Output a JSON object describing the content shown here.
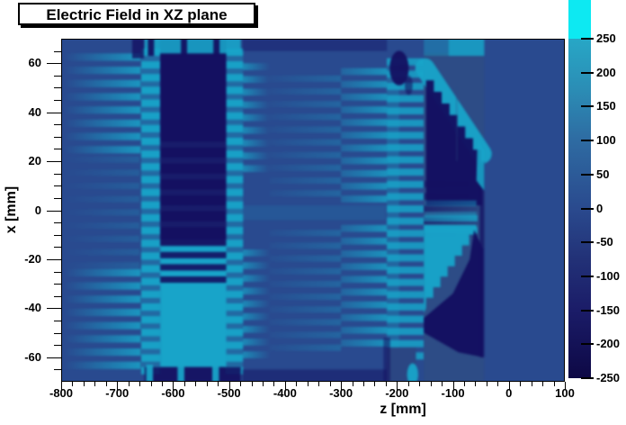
{
  "title": "Electric Field in XZ plane",
  "axes": {
    "x": {
      "title": "z [mm]",
      "min": -800,
      "max": 100,
      "ticks": [
        -800,
        -700,
        -600,
        -500,
        -400,
        -300,
        -200,
        -100,
        0,
        100
      ],
      "minor_step": 20
    },
    "y": {
      "title": "x [mm]",
      "min": -70,
      "max": 70,
      "ticks": [
        -60,
        -40,
        -20,
        0,
        20,
        40,
        60
      ],
      "minor_step": 5
    }
  },
  "colorbar": {
    "min": -250,
    "max": 250,
    "ticks": [
      250,
      200,
      150,
      100,
      50,
      0,
      -50,
      -100,
      -150,
      -200,
      -250
    ],
    "gradient_stops": [
      [
        "0%",
        "#0d0845"
      ],
      [
        "20%",
        "#1b1c68"
      ],
      [
        "35%",
        "#223177"
      ],
      [
        "50%",
        "#2a4a8e"
      ],
      [
        "70%",
        "#2e6ba2"
      ],
      [
        "85%",
        "#2b8db5"
      ],
      [
        "100%",
        "#27a7c6"
      ]
    ],
    "overflow_color": "#0de9f2"
  },
  "chart_data": {
    "type": "heatmap",
    "title": "Electric Field in XZ plane",
    "xlabel": "z [mm]",
    "ylabel": "x [mm]",
    "xlim": [
      -800,
      100
    ],
    "ylim": [
      -70,
      70
    ],
    "zlim": [
      -250,
      250
    ],
    "grid": false,
    "legend_position": "right-colorbar",
    "palette": {
      "bg": "#294a8f",
      "dark": "#141061",
      "cyan": "#18a4c9",
      "panel": "#2d4c86",
      "panel2": "#2b4683",
      "bright": "#0de9f2"
    },
    "palette_value_hints": {
      "bg": 0,
      "panel": -20,
      "panel2": -30,
      "dark": -220,
      "cyan": 230,
      "bright": 260
    },
    "features": [
      "uniform field region ~0 for z > -40 mm",
      "field-cage ring comb pattern (stripes every ~5 mm in x) for -800 < z < -650 mm, strongest near z = -650 mm",
      "strong positive (cyan ~ +230) striped columns at z = -650 and z = -490 mm spanning all x",
      "central electrode block -620 < z < -505 mm: strongly negative (~ -220) for x > -10 mm, strongly positive (~ +230) for -25 > x > -63 mm",
      "striped entrance column at z = -215 to -195 mm",
      "right structure -215 < z < -45 mm: jagged diagonal negative band from (z=-150, x=+53) to (z=-50, x=+20) with dark lobe below, mirrored positive cyan lobe for x < 0 with negative diagonal band toward bottom-right",
      "dark negative blob near (z=-196, x=+58); bright positive blob near (z=-172, x=-67)"
    ],
    "regions": [
      {
        "t": "rect",
        "c": "bg",
        "z": [
          -800,
          100
        ],
        "x": [
          70,
          -70
        ],
        "a": 1
      },
      {
        "t": "stripes",
        "c": "cyan",
        "z": [
          -795,
          -658
        ],
        "x": [
          64,
          24
        ],
        "p": 5.4,
        "th": 3.0,
        "a": [
          0,
          0.85
        ]
      },
      {
        "t": "stripes",
        "c": "cyan",
        "z": [
          -795,
          -658
        ],
        "x": [
          -24,
          -64
        ],
        "p": 5.4,
        "th": 3.0,
        "a": [
          0,
          0.85
        ]
      },
      {
        "t": "stripes",
        "c": "cyan",
        "z": [
          -795,
          -660
        ],
        "x": [
          22,
          -22
        ],
        "p": 5.4,
        "th": 2.6,
        "a": [
          0,
          0.22
        ]
      },
      {
        "t": "rect",
        "c": "cyan",
        "z": [
          -657,
          -623
        ],
        "x": [
          66,
          -66
        ],
        "a": 0.35
      },
      {
        "t": "stripes",
        "c": "cyan",
        "z": [
          -657,
          -623
        ],
        "x": [
          66,
          -66
        ],
        "p": 5.2,
        "th": 3.0,
        "a": [
          0.95,
          0.95
        ]
      },
      {
        "t": "rect",
        "c": "cyan",
        "z": [
          -507,
          -475
        ],
        "x": [
          66,
          -66
        ],
        "a": 0.35
      },
      {
        "t": "stripes",
        "c": "cyan",
        "z": [
          -507,
          -475
        ],
        "x": [
          66,
          -66
        ],
        "p": 5.2,
        "th": 3.0,
        "a": [
          0.95,
          0.95
        ]
      },
      {
        "t": "stripes",
        "c": "cyan",
        "z": [
          -475,
          -426
        ],
        "x": [
          60,
          16
        ],
        "p": 5.2,
        "th": 2.8,
        "a": [
          0.7,
          0
        ]
      },
      {
        "t": "stripes",
        "c": "cyan",
        "z": [
          -475,
          -426
        ],
        "x": [
          -16,
          -60
        ],
        "p": 5.2,
        "th": 2.8,
        "a": [
          0.7,
          0
        ]
      },
      {
        "t": "rect",
        "c": "dark",
        "z": [
          -623,
          -505
        ],
        "x": [
          70,
          -12
        ],
        "a": 1
      },
      {
        "t": "rect",
        "c": "cyan",
        "z": [
          -623,
          -505
        ],
        "x": [
          -14,
          -64
        ],
        "a": 1
      },
      {
        "t": "stripes",
        "c": "dark",
        "z": [
          -623,
          -505
        ],
        "x": [
          -12,
          -30
        ],
        "p": 5.0,
        "th": 2.6,
        "a": [
          0.9,
          0.9
        ]
      },
      {
        "t": "stripes",
        "c": "bg",
        "z": [
          -623,
          -505
        ],
        "x": [
          28,
          -8
        ],
        "p": 6.5,
        "th": 2.4,
        "a": [
          0.22,
          0.22
        ]
      },
      {
        "t": "rect",
        "c": "cyan",
        "z": [
          -651,
          -479
        ],
        "x": [
          70,
          64
        ],
        "a": 0.9
      },
      {
        "t": "rect",
        "c": "dark",
        "z": [
          -645,
          -634
        ],
        "x": [
          70,
          63
        ],
        "a": 0.95
      },
      {
        "t": "rect",
        "c": "dark",
        "z": [
          -586,
          -575
        ],
        "x": [
          70,
          63
        ],
        "a": 0.95
      },
      {
        "t": "rect",
        "c": "dark",
        "z": [
          -528,
          -517
        ],
        "x": [
          70,
          63
        ],
        "a": 0.95
      },
      {
        "t": "rect",
        "c": "dark",
        "z": [
          -673,
          -652
        ],
        "x": [
          70,
          62
        ],
        "a": 0.8
      },
      {
        "t": "rect",
        "c": "dark",
        "z": [
          -651,
          -479
        ],
        "x": [
          -64,
          -70
        ],
        "a": 0.9
      },
      {
        "t": "rect",
        "c": "cyan",
        "z": [
          -648,
          -636
        ],
        "x": [
          -63,
          -70
        ],
        "a": 0.95
      },
      {
        "t": "rect",
        "c": "cyan",
        "z": [
          -592,
          -580
        ],
        "x": [
          -63,
          -70
        ],
        "a": 0.95
      },
      {
        "t": "rect",
        "c": "cyan",
        "z": [
          -530,
          -518
        ],
        "x": [
          -63,
          -70
        ],
        "a": 0.95
      },
      {
        "t": "rect",
        "c": "dark",
        "z": [
          -476,
          -218
        ],
        "x": [
          70,
          65
        ],
        "a": 0.4
      },
      {
        "t": "rect",
        "c": "dark",
        "z": [
          -476,
          -218
        ],
        "x": [
          -65,
          -70
        ],
        "a": 0.5
      },
      {
        "t": "stripes",
        "c": "cyan",
        "z": [
          -428,
          -300
        ],
        "x": [
          55,
          8
        ],
        "p": 5.2,
        "th": 2.6,
        "a": [
          0.05,
          0.3
        ]
      },
      {
        "t": "stripes",
        "c": "cyan",
        "z": [
          -428,
          -300
        ],
        "x": [
          -8,
          -55
        ],
        "p": 5.2,
        "th": 2.6,
        "a": [
          0.05,
          0.3
        ]
      },
      {
        "t": "stripes",
        "c": "cyan",
        "z": [
          -300,
          -218
        ],
        "x": [
          58,
          6
        ],
        "p": 5.2,
        "th": 2.8,
        "a": [
          0.3,
          0.8
        ]
      },
      {
        "t": "stripes",
        "c": "cyan",
        "z": [
          -300,
          -218
        ],
        "x": [
          -6,
          -58
        ],
        "p": 5.2,
        "th": 2.8,
        "a": [
          0.3,
          0.8
        ]
      },
      {
        "t": "rect",
        "c": "cyan",
        "z": [
          -500,
          -220
        ],
        "x": [
          2,
          -4
        ],
        "a": 0.15
      },
      {
        "t": "rect",
        "c": "cyan",
        "z": [
          -218,
          -196
        ],
        "x": [
          62,
          -62
        ],
        "a": 0.3
      },
      {
        "t": "stripes",
        "c": "cyan",
        "z": [
          -218,
          -152
        ],
        "x": [
          62,
          -62
        ],
        "p": 5.0,
        "th": 2.9,
        "a": [
          0.85,
          0.85
        ]
      },
      {
        "t": "rect",
        "c": "panel",
        "z": [
          -152,
          -44
        ],
        "x": [
          64,
          -70
        ],
        "a": 1
      },
      {
        "t": "rect",
        "c": "panel2",
        "z": [
          -218,
          -166
        ],
        "x": [
          -56,
          -70
        ],
        "a": 1
      },
      {
        "t": "rect",
        "c": "dark",
        "z": [
          -224,
          -212
        ],
        "x": [
          -52,
          -70
        ],
        "a": 0.55
      },
      {
        "t": "ellipse",
        "c": "cyan",
        "cz": -172,
        "cx": -67,
        "rz": 10,
        "rx": 4.5,
        "a": 0.95
      },
      {
        "t": "rect",
        "c": "cyan",
        "z": [
          -108,
          -44
        ],
        "x": [
          70,
          63
        ],
        "a": 0.85
      },
      {
        "t": "rect",
        "c": "cyan",
        "z": [
          -152,
          -108
        ],
        "x": [
          70,
          63
        ],
        "a": 0.4
      },
      {
        "t": "line",
        "c": "cyan",
        "from": [
          -150,
          58
        ],
        "to": [
          -48,
          23
        ],
        "w": 8,
        "a": 0.95
      },
      {
        "t": "stair",
        "c": "dark",
        "from": [
          -148,
          53
        ],
        "to": [
          -50,
          20
        ],
        "steps": 7,
        "tail": [
          [
            -48,
            16
          ],
          [
            -48,
            2
          ],
          [
            -148,
            2
          ]
        ],
        "a": 0.97
      },
      {
        "t": "vline",
        "c": "panel",
        "z": -93,
        "x": [
          50,
          20
        ],
        "w": 1.6,
        "a": 0.55
      },
      {
        "t": "rect",
        "c": "dark",
        "z": [
          -52,
          -44
        ],
        "x": [
          20,
          -60
        ],
        "a": 0.75
      },
      {
        "t": "poly",
        "c": "cyan",
        "pts": [
          [
            -56,
            30
          ],
          [
            -44,
            24
          ],
          [
            -44,
            8
          ],
          [
            -58,
            12
          ]
        ],
        "a": 0.9
      },
      {
        "t": "stripes",
        "c": "dark",
        "z": [
          -152,
          -54
        ],
        "x": [
          12,
          -12
        ],
        "p": 5.0,
        "th": 2.7,
        "a": [
          0.6,
          0.12
        ]
      },
      {
        "t": "stripes",
        "c": "cyan",
        "z": [
          -150,
          -58
        ],
        "x": [
          4,
          -4
        ],
        "p": 4.6,
        "th": 2.4,
        "a": [
          0.25,
          0.45
        ]
      },
      {
        "t": "stair",
        "c": "cyan",
        "from": [
          -58,
          -10
        ],
        "to": [
          -148,
          -40
        ],
        "steps": 7,
        "tail": [
          [
            -152,
            -42
          ],
          [
            -152,
            -6
          ],
          [
            -58,
            -6
          ]
        ],
        "a": 0.97
      },
      {
        "t": "stripes",
        "c": "cyan",
        "z": [
          -152,
          -56
        ],
        "x": [
          -2,
          -10
        ],
        "p": 4.8,
        "th": 2.6,
        "a": [
          0.5,
          0.8
        ]
      },
      {
        "t": "poly",
        "c": "dark",
        "pts": [
          [
            -62,
            -8
          ],
          [
            -46,
            -16
          ],
          [
            -46,
            -60
          ],
          [
            -90,
            -58
          ],
          [
            -152,
            -50
          ],
          [
            -152,
            -44
          ],
          [
            -100,
            -34
          ],
          [
            -70,
            -20
          ]
        ],
        "a": 0.97
      },
      {
        "t": "poly",
        "c": "panel",
        "pts": [
          [
            -144,
            -54
          ],
          [
            -46,
            -62
          ],
          [
            -46,
            -70
          ],
          [
            -152,
            -70
          ],
          [
            -152,
            -57
          ]
        ],
        "a": 1
      },
      {
        "t": "ellipse",
        "c": "dark",
        "cz": -196,
        "cx": 58,
        "rz": 17,
        "rx": 7,
        "a": 0.95
      },
      {
        "t": "ellipse",
        "c": "dark",
        "cz": -179,
        "cx": 51,
        "rz": 7,
        "rx": 4,
        "a": 0.6
      }
    ]
  }
}
